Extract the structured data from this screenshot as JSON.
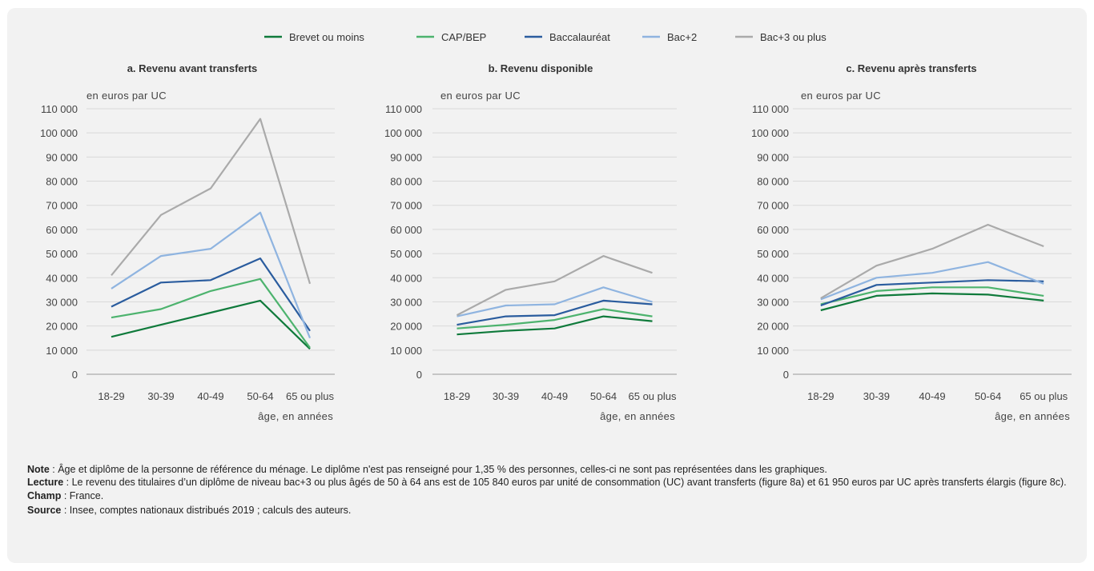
{
  "legend": [
    {
      "name": "Brevet ou moins",
      "color": "#0f7a3b"
    },
    {
      "name": "CAP/BEP",
      "color": "#4db36e"
    },
    {
      "name": "Baccalauréat",
      "color": "#2a5c9e"
    },
    {
      "name": "Bac+2",
      "color": "#8fb4e0"
    },
    {
      "name": "Bac+3 ou plus",
      "color": "#aaaaaa"
    }
  ],
  "chart_data": [
    {
      "type": "line",
      "title": "a. Revenu avant transferts",
      "ylabel": "en euros par UC",
      "xlabel": "âge, en années",
      "categories": [
        "18-29",
        "30-39",
        "40-49",
        "50-64",
        "65 ou plus"
      ],
      "y_ticks": [
        "0",
        "10 000",
        "20 000",
        "30 000",
        "40 000",
        "50 000",
        "60 000",
        "70 000",
        "80 000",
        "90 000",
        "100 000",
        "110 000"
      ],
      "ylim": [
        0,
        110000
      ],
      "grid": true,
      "series": [
        {
          "name": "Brevet ou moins",
          "color": "#0f7a3b",
          "values": [
            15500,
            20500,
            25500,
            30500,
            10500
          ]
        },
        {
          "name": "CAP/BEP",
          "color": "#4db36e",
          "values": [
            23500,
            27000,
            34500,
            39500,
            11000
          ]
        },
        {
          "name": "Baccalauréat",
          "color": "#2a5c9e",
          "values": [
            28000,
            38000,
            39000,
            48000,
            18000
          ]
        },
        {
          "name": "Bac+2",
          "color": "#8fb4e0",
          "values": [
            35500,
            49000,
            52000,
            67000,
            15000
          ]
        },
        {
          "name": "Bac+3 ou plus",
          "color": "#aaaaaa",
          "values": [
            41000,
            66000,
            77000,
            105840,
            37500
          ]
        }
      ]
    },
    {
      "type": "line",
      "title": "b. Revenu disponible",
      "ylabel": "en euros par UC",
      "xlabel": "âge, en années",
      "categories": [
        "18-29",
        "30-39",
        "40-49",
        "50-64",
        "65 ou plus"
      ],
      "y_ticks": [
        "0",
        "10 000",
        "20 000",
        "30 000",
        "40 000",
        "50 000",
        "60 000",
        "70 000",
        "80 000",
        "90 000",
        "100 000",
        "110 000"
      ],
      "ylim": [
        0,
        110000
      ],
      "grid": true,
      "series": [
        {
          "name": "Brevet ou moins",
          "color": "#0f7a3b",
          "values": [
            16500,
            18000,
            19000,
            24000,
            22000
          ]
        },
        {
          "name": "CAP/BEP",
          "color": "#4db36e",
          "values": [
            19000,
            20500,
            22500,
            27000,
            24000
          ]
        },
        {
          "name": "Baccalauréat",
          "color": "#2a5c9e",
          "values": [
            20500,
            24000,
            24500,
            30500,
            29000
          ]
        },
        {
          "name": "Bac+2",
          "color": "#8fb4e0",
          "values": [
            24000,
            28500,
            29000,
            36000,
            30000
          ]
        },
        {
          "name": "Bac+3 ou plus",
          "color": "#aaaaaa",
          "values": [
            24500,
            35000,
            38500,
            49000,
            42000
          ]
        }
      ]
    },
    {
      "type": "line",
      "title": "c. Revenu après transferts",
      "ylabel": "en euros par UC",
      "xlabel": "âge, en années",
      "categories": [
        "18-29",
        "30-39",
        "40-49",
        "50-64",
        "65 ou plus"
      ],
      "y_ticks": [
        "0",
        "10 000",
        "20 000",
        "30 000",
        "40 000",
        "50 000",
        "60 000",
        "70 000",
        "80 000",
        "90 000",
        "100 000",
        "110 000"
      ],
      "ylim": [
        0,
        110000
      ],
      "grid": true,
      "series": [
        {
          "name": "Brevet ou moins",
          "color": "#0f7a3b",
          "values": [
            26500,
            32500,
            33500,
            33000,
            30500
          ]
        },
        {
          "name": "CAP/BEP",
          "color": "#4db36e",
          "values": [
            29000,
            34500,
            36000,
            36000,
            32500
          ]
        },
        {
          "name": "Baccalauréat",
          "color": "#2a5c9e",
          "values": [
            28500,
            37000,
            38000,
            39000,
            38500
          ]
        },
        {
          "name": "Bac+2",
          "color": "#8fb4e0",
          "values": [
            31000,
            40000,
            42000,
            46500,
            37500
          ]
        },
        {
          "name": "Bac+3 ou plus",
          "color": "#aaaaaa",
          "values": [
            31500,
            45000,
            52000,
            61950,
            53000
          ]
        }
      ]
    }
  ],
  "notes": {
    "note_label": "Note",
    "note_text": " : Âge et diplôme de la personne de référence du ménage. Le diplôme n'est pas renseigné pour 1,35 % des personnes, celles-ci ne sont pas représentées dans les graphiques.",
    "lecture_label": "Lecture",
    "lecture_text": " : Le revenu des titulaires d’un diplôme de niveau bac+3 ou plus âgés de 50 à 64 ans est de 105 840 euros par unité de consommation (UC) avant transferts (figure 8a) et 61 950 euros par UC après transferts élargis (figure 8c).",
    "champ_label": "Champ",
    "champ_text": " : France.",
    "source_label": "Source",
    "source_text": " : Insee, comptes nationaux distribués 2019 ; calculs des auteurs."
  }
}
